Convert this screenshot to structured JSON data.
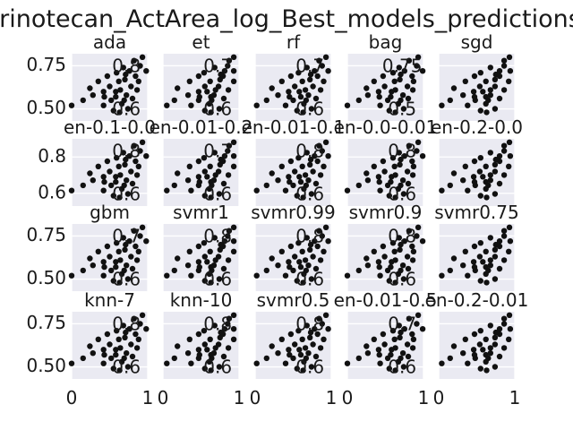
{
  "chart_data": {
    "type": "scatter",
    "title": "Irinotecan_ActArea_log_Best_models_predictions",
    "layout": {
      "rows": 4,
      "cols": 5
    },
    "x_range": [
      0,
      1
    ],
    "x_tick_labels": [
      "0",
      "1"
    ],
    "grid": true,
    "rows": [
      {
        "y_range": [
          0.43,
          0.82
        ],
        "y_ticks": [
          0.5,
          0.75
        ],
        "y_tick_labels": [
          "0.50",
          "0.75"
        ]
      },
      {
        "y_range": [
          0.53,
          0.9
        ],
        "y_ticks": [
          0.6,
          0.8
        ],
        "y_tick_labels": [
          "0.6",
          "0.8"
        ]
      },
      {
        "y_range": [
          0.43,
          0.82
        ],
        "y_ticks": [
          0.5,
          0.75
        ],
        "y_tick_labels": [
          "0.50",
          "0.75"
        ]
      },
      {
        "y_range": [
          0.43,
          0.82
        ],
        "y_ticks": [
          0.5,
          0.75
        ],
        "y_tick_labels": [
          "0.50",
          "0.75"
        ]
      }
    ],
    "panels": [
      {
        "title": "ada",
        "overlay_labels": [
          "0.8",
          "0.6"
        ]
      },
      {
        "title": "et",
        "overlay_labels": [
          "0.7",
          "0.6"
        ]
      },
      {
        "title": "rf",
        "overlay_labels": [
          "0.7",
          "0.6"
        ]
      },
      {
        "title": "bag",
        "overlay_labels": [
          "0.75",
          "0.5"
        ]
      },
      {
        "title": "sgd",
        "overlay_labels": []
      },
      {
        "title": "en-0.1-0.0",
        "overlay_labels": [
          "0.8",
          "0.6"
        ]
      },
      {
        "title": "en-0.01-0.2",
        "overlay_labels": [
          "0.7",
          "0.6"
        ]
      },
      {
        "title": "en-0.01-0.1",
        "overlay_labels": [
          "0.8",
          "0.6"
        ]
      },
      {
        "title": "en-0.0-0.01",
        "overlay_labels": [
          "0.8",
          "0.6"
        ]
      },
      {
        "title": "en-0.2-0.0",
        "overlay_labels": []
      },
      {
        "title": "gbm",
        "overlay_labels": [
          "0.7",
          "0.6"
        ]
      },
      {
        "title": "svmr1",
        "overlay_labels": [
          "0.8",
          "0.6"
        ]
      },
      {
        "title": "svmr0.99",
        "overlay_labels": [
          "0.8",
          "0.6"
        ]
      },
      {
        "title": "svmr0.9",
        "overlay_labels": [
          "0.8",
          "0.6"
        ]
      },
      {
        "title": "svmr0.75",
        "overlay_labels": []
      },
      {
        "title": "knn-7",
        "overlay_labels": [
          "0.8",
          "0.6"
        ]
      },
      {
        "title": "knn-10",
        "overlay_labels": [
          "0.8",
          "0.6"
        ]
      },
      {
        "title": "svmr0.5",
        "overlay_labels": [
          "0.8",
          "0.6"
        ]
      },
      {
        "title": "en-0.01-0.5",
        "overlay_labels": [
          "0.7",
          "0.6"
        ]
      },
      {
        "title": "en-0.2-0.01",
        "overlay_labels": []
      }
    ],
    "point_pattern": {
      "base_points": [
        [
          0.02,
          0.52
        ],
        [
          0.15,
          0.55
        ],
        [
          0.22,
          0.62
        ],
        [
          0.3,
          0.58
        ],
        [
          0.35,
          0.66
        ],
        [
          0.4,
          0.52
        ],
        [
          0.44,
          0.6
        ],
        [
          0.47,
          0.69
        ],
        [
          0.5,
          0.55
        ],
        [
          0.52,
          0.63
        ],
        [
          0.55,
          0.49
        ],
        [
          0.57,
          0.71
        ],
        [
          0.6,
          0.57
        ],
        [
          0.62,
          0.66
        ],
        [
          0.64,
          0.53
        ],
        [
          0.66,
          0.61
        ],
        [
          0.68,
          0.74
        ],
        [
          0.7,
          0.58
        ],
        [
          0.72,
          0.67
        ],
        [
          0.74,
          0.5
        ],
        [
          0.76,
          0.63
        ],
        [
          0.78,
          0.72
        ],
        [
          0.8,
          0.56
        ],
        [
          0.82,
          0.69
        ],
        [
          0.84,
          0.78
        ],
        [
          0.86,
          0.61
        ],
        [
          0.88,
          0.75
        ],
        [
          0.9,
          0.66
        ],
        [
          0.93,
          0.8
        ],
        [
          0.96,
          0.72
        ],
        [
          0.45,
          0.57
        ],
        [
          0.58,
          0.6
        ],
        [
          0.67,
          0.55
        ],
        [
          0.73,
          0.7
        ],
        [
          0.63,
          0.48
        ]
      ],
      "x_shift": [
        0.02,
        -0.03,
        0.0,
        0.03,
        -0.02
      ]
    },
    "colors": {
      "background": "#eaeaf2",
      "grid": "#ffffff",
      "marker": "#111111",
      "text": "#1a1a1a"
    }
  }
}
